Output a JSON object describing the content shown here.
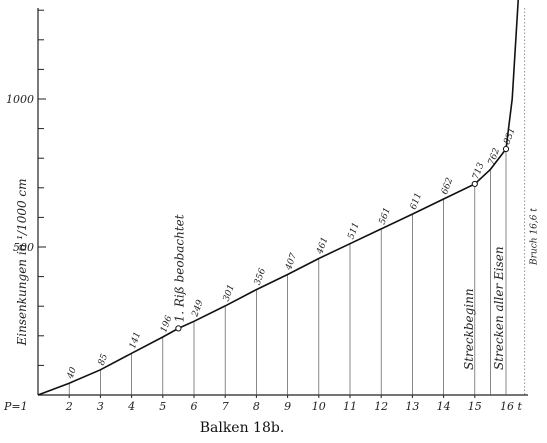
{
  "chart_data": {
    "type": "line",
    "caption": "Balken 18b.",
    "ylabel": "Einsenkungen in ¹/1000 cm",
    "x_axis_start_label": "P=1",
    "x_axis_end_label": "16 t",
    "x_ticks": [
      "2",
      "3",
      "4",
      "5",
      "6",
      "7",
      "8",
      "9",
      "10",
      "11",
      "12",
      "13",
      "14",
      "15"
    ],
    "y_ticks": [
      {
        "value": 500,
        "label": "500"
      },
      {
        "value": 1000,
        "label": "1000"
      }
    ],
    "xlim": [
      1,
      16.5
    ],
    "ylim": [
      0,
      1350
    ],
    "series": [
      {
        "points": [
          {
            "x": 1,
            "y": 0
          },
          {
            "x": 2,
            "y": 40
          },
          {
            "x": 3,
            "y": 85
          },
          {
            "x": 4,
            "y": 141
          },
          {
            "x": 5,
            "y": 196
          },
          {
            "x": 5.5,
            "y": 225
          },
          {
            "x": 6,
            "y": 249
          },
          {
            "x": 7,
            "y": 301
          },
          {
            "x": 8,
            "y": 356
          },
          {
            "x": 9,
            "y": 407
          },
          {
            "x": 10,
            "y": 461
          },
          {
            "x": 11,
            "y": 511
          },
          {
            "x": 12,
            "y": 561
          },
          {
            "x": 13,
            "y": 611
          },
          {
            "x": 14,
            "y": 662
          },
          {
            "x": 15,
            "y": 713
          },
          {
            "x": 15.5,
            "y": 762
          },
          {
            "x": 16,
            "y": 831
          },
          {
            "x": 16.2,
            "y": 1000
          },
          {
            "x": 16.4,
            "y": 1350
          }
        ]
      }
    ],
    "point_labels": [
      {
        "x": 2,
        "label": "40"
      },
      {
        "x": 3,
        "label": "85"
      },
      {
        "x": 4,
        "label": "141"
      },
      {
        "x": 5,
        "label": "196"
      },
      {
        "x": 6,
        "label": "249"
      },
      {
        "x": 7,
        "label": "301"
      },
      {
        "x": 8,
        "label": "356"
      },
      {
        "x": 9,
        "label": "407"
      },
      {
        "x": 10,
        "label": "461"
      },
      {
        "x": 11,
        "label": "511"
      },
      {
        "x": 12,
        "label": "561"
      },
      {
        "x": 13,
        "label": "611"
      },
      {
        "x": 14,
        "label": "662"
      },
      {
        "x": 15,
        "label": "713"
      },
      {
        "x": 15.5,
        "label": "762"
      },
      {
        "x": 16,
        "label": "831"
      }
    ],
    "markers": [
      {
        "x": 5.5,
        "y": 225
      },
      {
        "x": 15,
        "y": 713
      },
      {
        "x": 16,
        "y": 831
      }
    ],
    "annotations": [
      {
        "x": 5.5,
        "y_label_base": 225,
        "text": "1. Riß beobachtet"
      },
      {
        "x": 15,
        "y_label_base": 0,
        "text": "Streckbeginn"
      },
      {
        "x": 16,
        "y_label_base": 0,
        "text": "Strecken aller Eisen"
      },
      {
        "x": 16.6,
        "y_label_base": 0,
        "text": "Bruch 16,6 t"
      }
    ],
    "grid": false
  }
}
